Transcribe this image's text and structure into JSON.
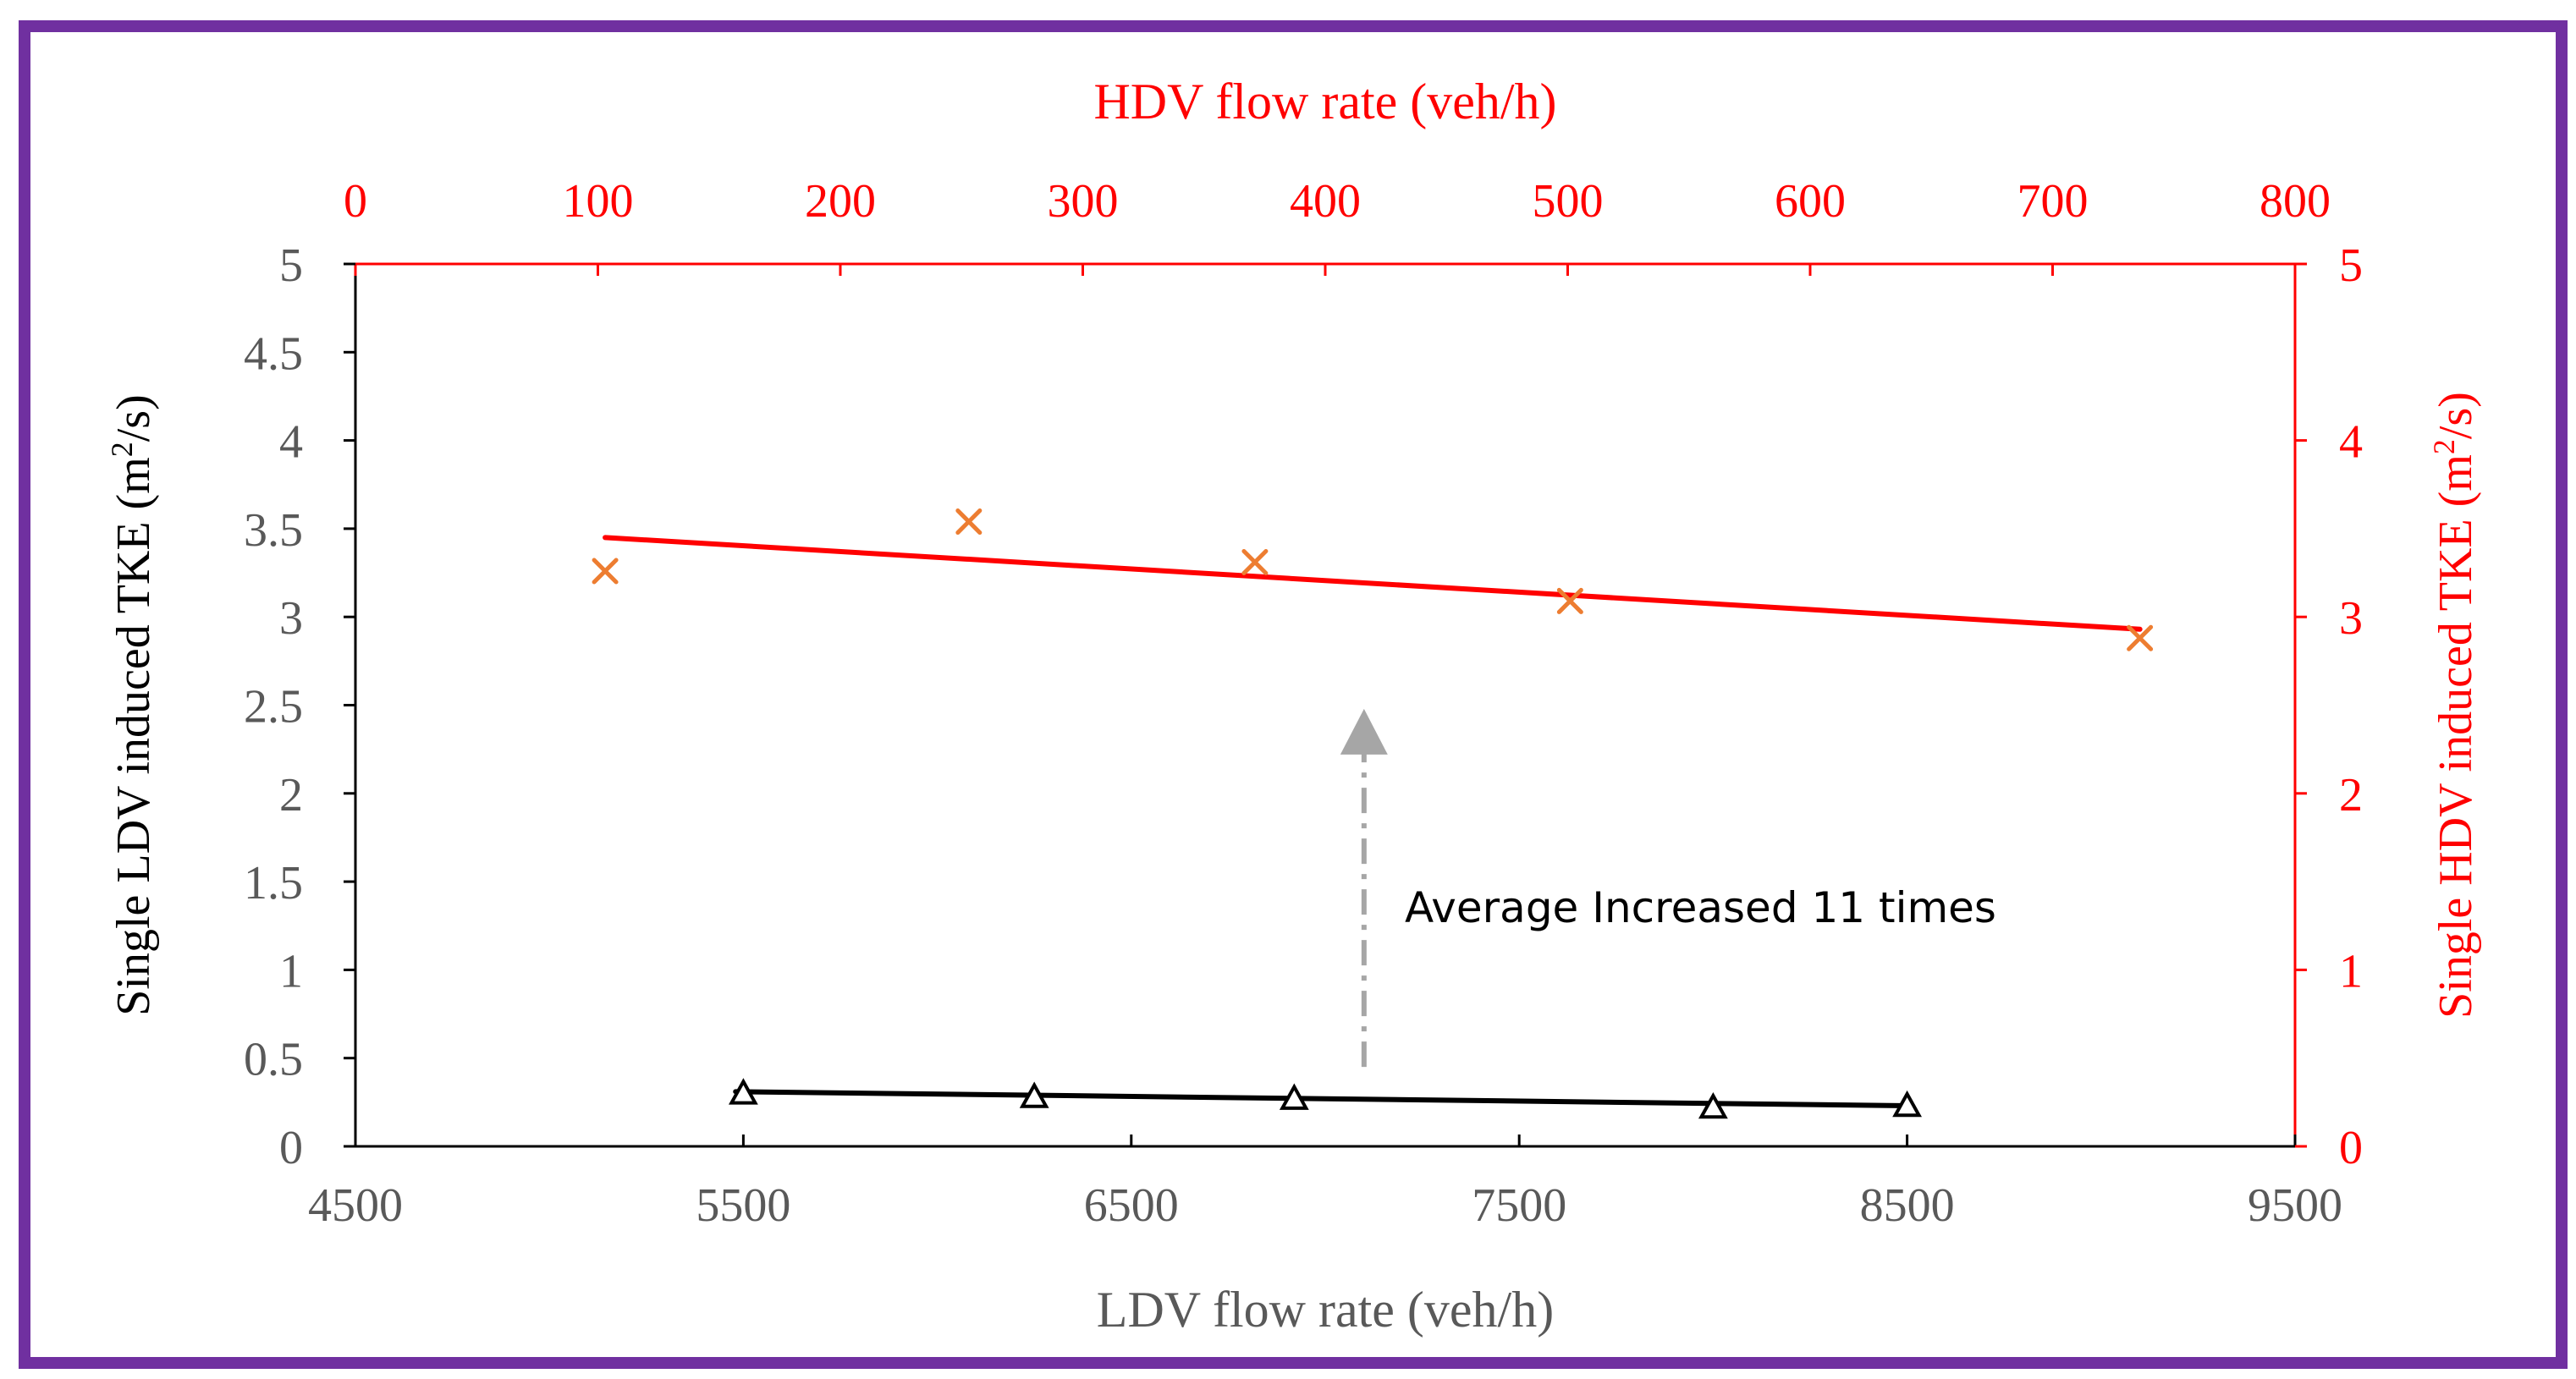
{
  "colors": {
    "frame": "#7030a0",
    "ldv_axis": "#000000",
    "ldv_text": "#595959",
    "hdv": "#ff0000",
    "hdv_marker": "#ed7d31",
    "annotation_arrow": "#a6a6a6"
  },
  "chart_data": {
    "type": "scatter",
    "x_bottom": {
      "label": "LDV flow rate (veh/h)",
      "range": [
        4500,
        9500
      ],
      "ticks": [
        "4500",
        "5500",
        "6500",
        "7500",
        "8500",
        "9500"
      ]
    },
    "x_top": {
      "label": "HDV flow rate (veh/h)",
      "range": [
        0,
        800
      ],
      "ticks": [
        "0",
        "100",
        "200",
        "300",
        "400",
        "500",
        "600",
        "700",
        "800"
      ]
    },
    "y_left": {
      "label_main": "Single LDV induced TKE (m",
      "label_sup": "2",
      "label_end": "/s)",
      "range": [
        0,
        5
      ],
      "ticks": [
        "0",
        "0.5",
        "1",
        "1.5",
        "2",
        "2.5",
        "3",
        "3.5",
        "4",
        "4.5",
        "5"
      ]
    },
    "y_right": {
      "label_main": "Single HDV induced TKE (m",
      "label_sup": "2",
      "label_end": "/s)",
      "range": [
        0,
        5
      ],
      "ticks": [
        "0",
        "1",
        "2",
        "3",
        "4",
        "5"
      ]
    },
    "series": [
      {
        "name": "LDV",
        "axes": "bottom-left",
        "marker": "triangle",
        "points": [
          {
            "x": 5500,
            "y": 0.3
          },
          {
            "x": 6250,
            "y": 0.28
          },
          {
            "x": 6920,
            "y": 0.27
          },
          {
            "x": 8000,
            "y": 0.22
          },
          {
            "x": 8500,
            "y": 0.23
          }
        ],
        "trendline": {
          "x": [
            5480,
            8500
          ],
          "y": [
            0.31,
            0.23
          ]
        }
      },
      {
        "name": "HDV",
        "axes": "top-right",
        "marker": "x",
        "points": [
          {
            "x": 103,
            "y": 3.26
          },
          {
            "x": 253,
            "y": 3.54
          },
          {
            "x": 371,
            "y": 3.31
          },
          {
            "x": 501,
            "y": 3.09
          },
          {
            "x": 736,
            "y": 2.88
          }
        ],
        "trendline": {
          "x": [
            103,
            736
          ],
          "y": [
            3.45,
            2.93
          ]
        }
      }
    ],
    "annotation": {
      "text": "Average Increased 11 times",
      "arrow_from": {
        "x_ldv": 7100,
        "y": 0.45
      },
      "arrow_to": {
        "x_ldv": 7100,
        "y": 2.45
      }
    }
  }
}
